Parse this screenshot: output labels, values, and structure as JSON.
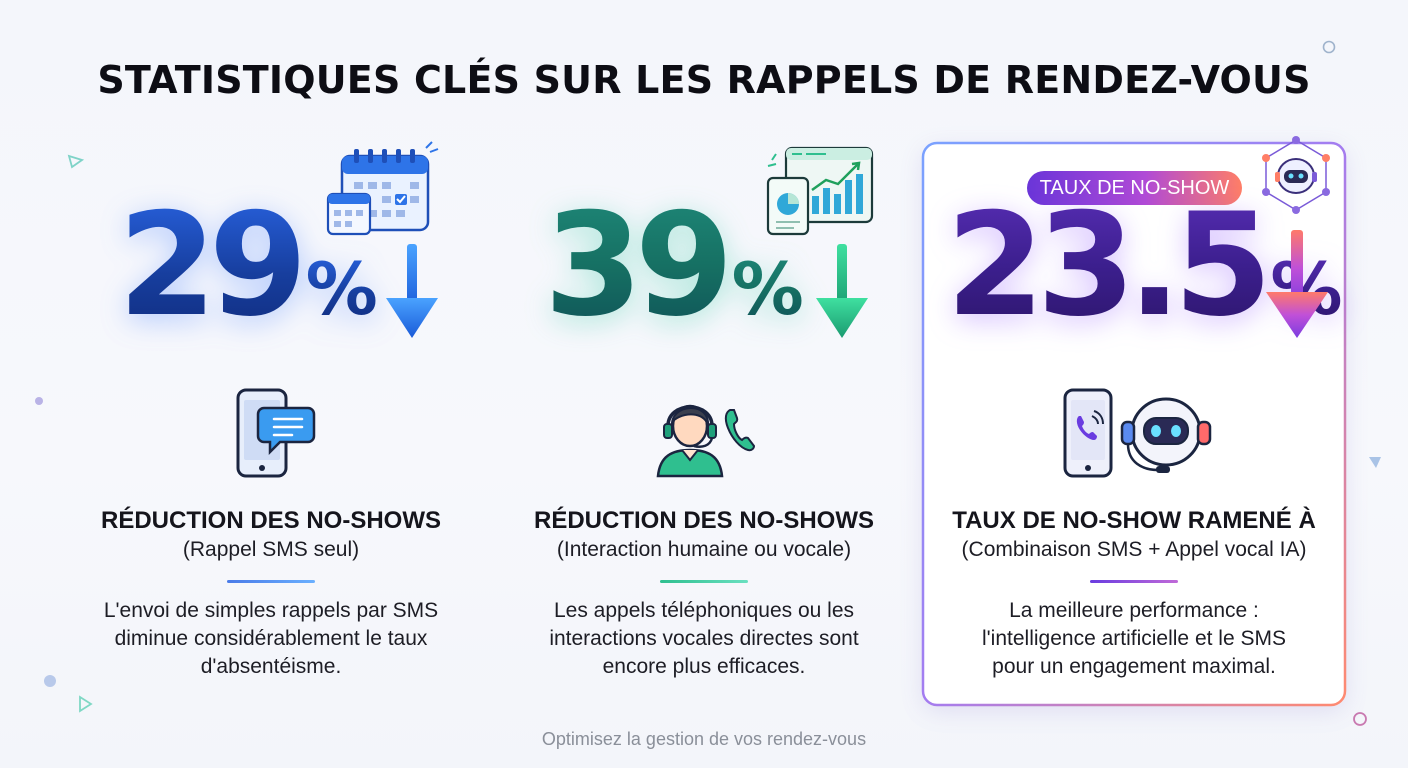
{
  "title": "STATISTIQUES CLÉS SUR LES RAPPELS DE RENDEZ-VOUS",
  "stats": [
    {
      "value": "29",
      "unit": "%",
      "heading": "RÉDUCTION DES NO-SHOWS",
      "subheading": "(Rappel SMS seul)",
      "description": [
        "L'envoi de simples rappels par SMS",
        "diminue considérablement le taux",
        "d'absentéisme."
      ],
      "icons": [
        "calendar-icon",
        "smartphone-sms-icon",
        "arrow-down-icon"
      ],
      "accent": "#2f6fe0"
    },
    {
      "value": "39",
      "unit": "%",
      "heading": "RÉDUCTION DES NO-SHOWS",
      "subheading": "(Interaction humaine ou vocale)",
      "description": [
        "Les appels téléphoniques ou les",
        "interactions vocales directes sont",
        "encore plus efficaces."
      ],
      "icons": [
        "analytics-dashboard-icon",
        "call-agent-headset-icon",
        "phone-icon",
        "arrow-down-icon"
      ],
      "accent": "#1fbf8f"
    },
    {
      "value": "23.5",
      "unit": "%",
      "badge": "TAUX DE NO-SHOW",
      "heading": "TAUX DE NO-SHOW RAMENÉ À",
      "subheading": "(Combinaison SMS + Appel vocal IA)",
      "description": [
        "La meilleure performance :",
        "l'intelligence artificielle et le SMS",
        "pour un engagement maximal."
      ],
      "icons": [
        "ai-network-robot-icon",
        "smartphone-call-icon",
        "ai-robot-headset-icon",
        "arrow-down-icon"
      ],
      "accent": "#7a3ce0"
    }
  ],
  "footer": "Optimisez la gestion de vos rendez-vous"
}
